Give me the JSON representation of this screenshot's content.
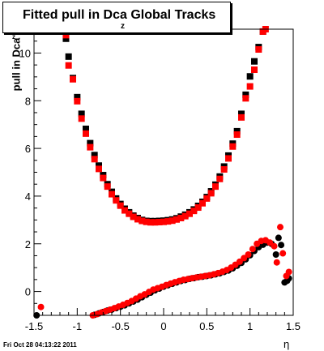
{
  "chart_data": {
    "type": "scatter",
    "title": "Fitted pull in Dca",
    "title_subscript": "z",
    "title_suffix": " Global Tracks",
    "ylabel": "pull in Dca",
    "ylabel_subscript": "z",
    "xlabel": "η",
    "xlim": [
      -1.5,
      1.5
    ],
    "ylim": [
      -1,
      11
    ],
    "x_ticks": [
      "-1.5",
      "-1",
      "-0.5",
      "0",
      "0.5",
      "1",
      "1.5"
    ],
    "y_ticks": [
      "0",
      "2",
      "4",
      "6",
      "8",
      "10"
    ],
    "grid": false,
    "footer": "Fri Oct 28 04:13:22 2011",
    "series": [
      {
        "group": "upper",
        "color": "#000000",
        "marker": "square",
        "x": [
          -1.13,
          -1.1,
          -1.05,
          -1.0,
          -0.95,
          -0.9,
          -0.85,
          -0.8,
          -0.75,
          -0.7,
          -0.65,
          -0.6,
          -0.55,
          -0.5,
          -0.45,
          -0.4,
          -0.35,
          -0.3,
          -0.25,
          -0.2,
          -0.15,
          -0.1,
          -0.05,
          0.0,
          0.05,
          0.1,
          0.15,
          0.2,
          0.25,
          0.3,
          0.35,
          0.4,
          0.45,
          0.5,
          0.55,
          0.6,
          0.65,
          0.7,
          0.75,
          0.8,
          0.85,
          0.9,
          0.95,
          1.0,
          1.05,
          1.1,
          1.15
        ],
        "y": [
          10.6,
          9.85,
          8.95,
          8.15,
          7.45,
          6.82,
          6.22,
          5.72,
          5.28,
          4.88,
          4.5,
          4.18,
          3.9,
          3.67,
          3.47,
          3.32,
          3.18,
          3.08,
          3.0,
          2.96,
          2.95,
          2.95,
          2.96,
          2.97,
          2.99,
          3.02,
          3.07,
          3.14,
          3.22,
          3.32,
          3.44,
          3.59,
          3.76,
          3.96,
          4.2,
          4.48,
          4.82,
          5.24,
          5.7,
          6.2,
          6.72,
          7.45,
          8.25,
          9.02,
          9.65,
          10.25,
          10.9
        ]
      },
      {
        "group": "upper",
        "color": "#ff0000",
        "marker": "square",
        "x": [
          -1.13,
          -1.1,
          -1.05,
          -1.0,
          -0.95,
          -0.9,
          -0.85,
          -0.8,
          -0.75,
          -0.7,
          -0.65,
          -0.6,
          -0.55,
          -0.5,
          -0.45,
          -0.4,
          -0.35,
          -0.3,
          -0.25,
          -0.2,
          -0.15,
          -0.1,
          -0.05,
          0.0,
          0.05,
          0.1,
          0.15,
          0.2,
          0.25,
          0.3,
          0.35,
          0.4,
          0.45,
          0.5,
          0.55,
          0.6,
          0.65,
          0.7,
          0.75,
          0.8,
          0.85,
          0.9,
          0.95,
          1.0,
          1.05,
          1.1,
          1.15,
          1.18
        ],
        "y": [
          10.75,
          9.48,
          8.9,
          7.98,
          7.25,
          6.62,
          6.05,
          5.55,
          5.14,
          4.76,
          4.4,
          4.08,
          3.82,
          3.6,
          3.4,
          3.26,
          3.13,
          3.03,
          2.96,
          2.92,
          2.9,
          2.9,
          2.91,
          2.92,
          2.94,
          2.97,
          3.02,
          3.08,
          3.16,
          3.26,
          3.38,
          3.52,
          3.7,
          3.9,
          4.12,
          4.4,
          4.72,
          5.12,
          5.58,
          6.08,
          6.58,
          7.3,
          8.1,
          8.6,
          9.3,
          10.15,
          10.9,
          11.0
        ]
      },
      {
        "group": "lower",
        "color": "#000000",
        "marker": "circle",
        "x": [
          -1.47,
          -0.8,
          -0.75,
          -0.7,
          -0.65,
          -0.6,
          -0.55,
          -0.5,
          -0.45,
          -0.4,
          -0.35,
          -0.3,
          -0.25,
          -0.2,
          -0.15,
          -0.1,
          -0.05,
          0.0,
          0.05,
          0.1,
          0.15,
          0.2,
          0.25,
          0.3,
          0.35,
          0.4,
          0.45,
          0.5,
          0.55,
          0.6,
          0.65,
          0.7,
          0.75,
          0.8,
          0.85,
          0.9,
          0.95,
          1.0,
          1.05,
          1.1,
          1.15,
          1.2,
          1.25,
          1.3,
          1.33,
          1.36,
          1.4,
          1.43,
          1.45
        ],
        "y": [
          -1.0,
          -0.98,
          -0.92,
          -0.86,
          -0.8,
          -0.76,
          -0.7,
          -0.64,
          -0.58,
          -0.5,
          -0.42,
          -0.34,
          -0.24,
          -0.14,
          -0.05,
          0.05,
          0.12,
          0.2,
          0.26,
          0.32,
          0.38,
          0.44,
          0.48,
          0.53,
          0.56,
          0.6,
          0.62,
          0.65,
          0.68,
          0.72,
          0.76,
          0.82,
          0.88,
          0.97,
          1.08,
          1.2,
          1.35,
          1.52,
          1.7,
          1.86,
          1.96,
          2.05,
          2.0,
          1.55,
          2.25,
          1.95,
          0.38,
          0.45,
          0.55
        ]
      },
      {
        "group": "lower",
        "color": "#ff0000",
        "marker": "circle",
        "x": [
          -1.42,
          -0.82,
          -0.77,
          -0.72,
          -0.67,
          -0.62,
          -0.57,
          -0.52,
          -0.47,
          -0.42,
          -0.37,
          -0.32,
          -0.27,
          -0.22,
          -0.17,
          -0.12,
          -0.07,
          -0.02,
          0.03,
          0.08,
          0.13,
          0.18,
          0.23,
          0.28,
          0.33,
          0.38,
          0.43,
          0.48,
          0.53,
          0.58,
          0.63,
          0.68,
          0.73,
          0.78,
          0.83,
          0.88,
          0.93,
          0.98,
          1.03,
          1.08,
          1.13,
          1.18,
          1.23,
          1.28,
          1.31,
          1.35,
          1.38,
          1.42,
          1.45
        ],
        "y": [
          -0.65,
          -1.02,
          -0.95,
          -0.88,
          -0.82,
          -0.76,
          -0.7,
          -0.63,
          -0.56,
          -0.48,
          -0.4,
          -0.3,
          -0.2,
          -0.12,
          -0.02,
          0.08,
          0.14,
          0.2,
          0.27,
          0.33,
          0.39,
          0.44,
          0.49,
          0.52,
          0.56,
          0.59,
          0.62,
          0.65,
          0.68,
          0.72,
          0.77,
          0.83,
          0.9,
          1.0,
          1.12,
          1.25,
          1.4,
          1.55,
          1.78,
          2.0,
          2.12,
          2.15,
          2.05,
          1.9,
          1.22,
          2.7,
          1.6,
          0.65,
          0.82
        ]
      }
    ]
  }
}
